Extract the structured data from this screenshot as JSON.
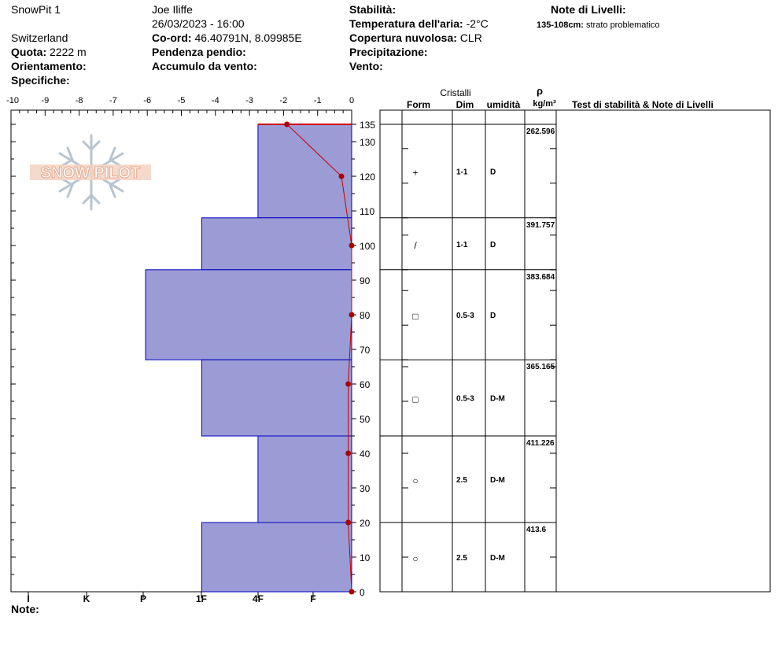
{
  "header": {
    "pit_name": "SnowPit 1",
    "observer": "Joe Iliffe",
    "datetime": "26/03/2023 - 16:00",
    "country": "Switzerland",
    "coord_label": "Co-ord:",
    "coord_value": "46.40791N, 8.09985E",
    "elevation_label": "Quota:",
    "elevation_value": "2222 m",
    "slope_label": "Pendenza pendio:",
    "aspect_label": "Orientamento:",
    "wind_loading_label": "Accumulo da vento:",
    "specifics_label": "Specifiche:",
    "stability_label": "Stabilità:",
    "air_temp_label": "Temperatura dell'aria:",
    "air_temp_value": "-2°C",
    "cloud_label": "Copertura nuvolosa:",
    "cloud_value": "CLR",
    "precip_label": "Precipitazione:",
    "wind_label": "Vento:",
    "layer_notes_label": "Note di Livelli:",
    "layer_note_range": "135-108cm:",
    "layer_note_text": "strato problematico"
  },
  "logo": {
    "text": "SNOW PILOT"
  },
  "footer": {
    "notes_label": "Note:"
  },
  "table": {
    "crystals_header": "Cristalli",
    "form_header": "Form",
    "dim_header": "Dim",
    "moisture_header": "umidità",
    "density_symbol": "ρ",
    "density_unit": "kg/m³",
    "tests_header": "Test di stabilità & Note di Livelli"
  },
  "chart_data": {
    "type": "snow-profile",
    "temperature_axis": {
      "ticks": [
        -10,
        -9,
        -8,
        -7,
        -6,
        -5,
        -4,
        -3,
        -2,
        -1,
        0
      ],
      "range": [
        -10,
        0
      ]
    },
    "depth_axis": {
      "ticks": [
        0,
        10,
        20,
        30,
        40,
        50,
        60,
        70,
        80,
        90,
        100,
        110,
        120,
        130,
        135
      ],
      "range": [
        0,
        135
      ]
    },
    "hardness_axis": {
      "labels": [
        "I",
        "K",
        "P",
        "1F",
        "4F",
        "F"
      ]
    },
    "layers": [
      {
        "top": 135,
        "bottom": 108,
        "hardness": "4F",
        "hardness_value": 2.75,
        "form": "+",
        "dim": "1-1",
        "moisture": "D",
        "density": "262.596"
      },
      {
        "top": 108,
        "bottom": 93,
        "hardness": "1F",
        "hardness_value": 4.4,
        "form": "/",
        "dim": "1-1",
        "moisture": "D",
        "density": "391.757"
      },
      {
        "top": 93,
        "bottom": 67,
        "hardness": "P",
        "hardness_value": 6.05,
        "form": "□",
        "dim": "0.5-3",
        "moisture": "D",
        "density": "383.684"
      },
      {
        "top": 67,
        "bottom": 45,
        "hardness": "1F",
        "hardness_value": 4.4,
        "form": "□",
        "dim": "0.5-3",
        "moisture": "D-M",
        "density": "365.165"
      },
      {
        "top": 45,
        "bottom": 20,
        "hardness": "4F",
        "hardness_value": 2.75,
        "form": "○",
        "dim": "2.5",
        "moisture": "D-M",
        "density": "411.226"
      },
      {
        "top": 20,
        "bottom": 0,
        "hardness": "1F",
        "hardness_value": 4.4,
        "form": "○",
        "dim": "2.5",
        "moisture": "D-M",
        "density": "413.6"
      }
    ],
    "temperature_profile": [
      {
        "depth": 135,
        "temp": -1.9
      },
      {
        "depth": 120,
        "temp": -0.3
      },
      {
        "depth": 100,
        "temp": 0
      },
      {
        "depth": 80,
        "temp": 0
      },
      {
        "depth": 60,
        "temp": -0.1
      },
      {
        "depth": 40,
        "temp": -0.1
      },
      {
        "depth": 20,
        "temp": -0.1
      },
      {
        "depth": 0,
        "temp": 0
      }
    ],
    "colors": {
      "layer_fill": "#9b9bd6",
      "layer_stroke": "#0000c0",
      "temp_line": "#cc0000",
      "temp_point": "#aa0000",
      "surface_line": "#cc0000"
    }
  }
}
